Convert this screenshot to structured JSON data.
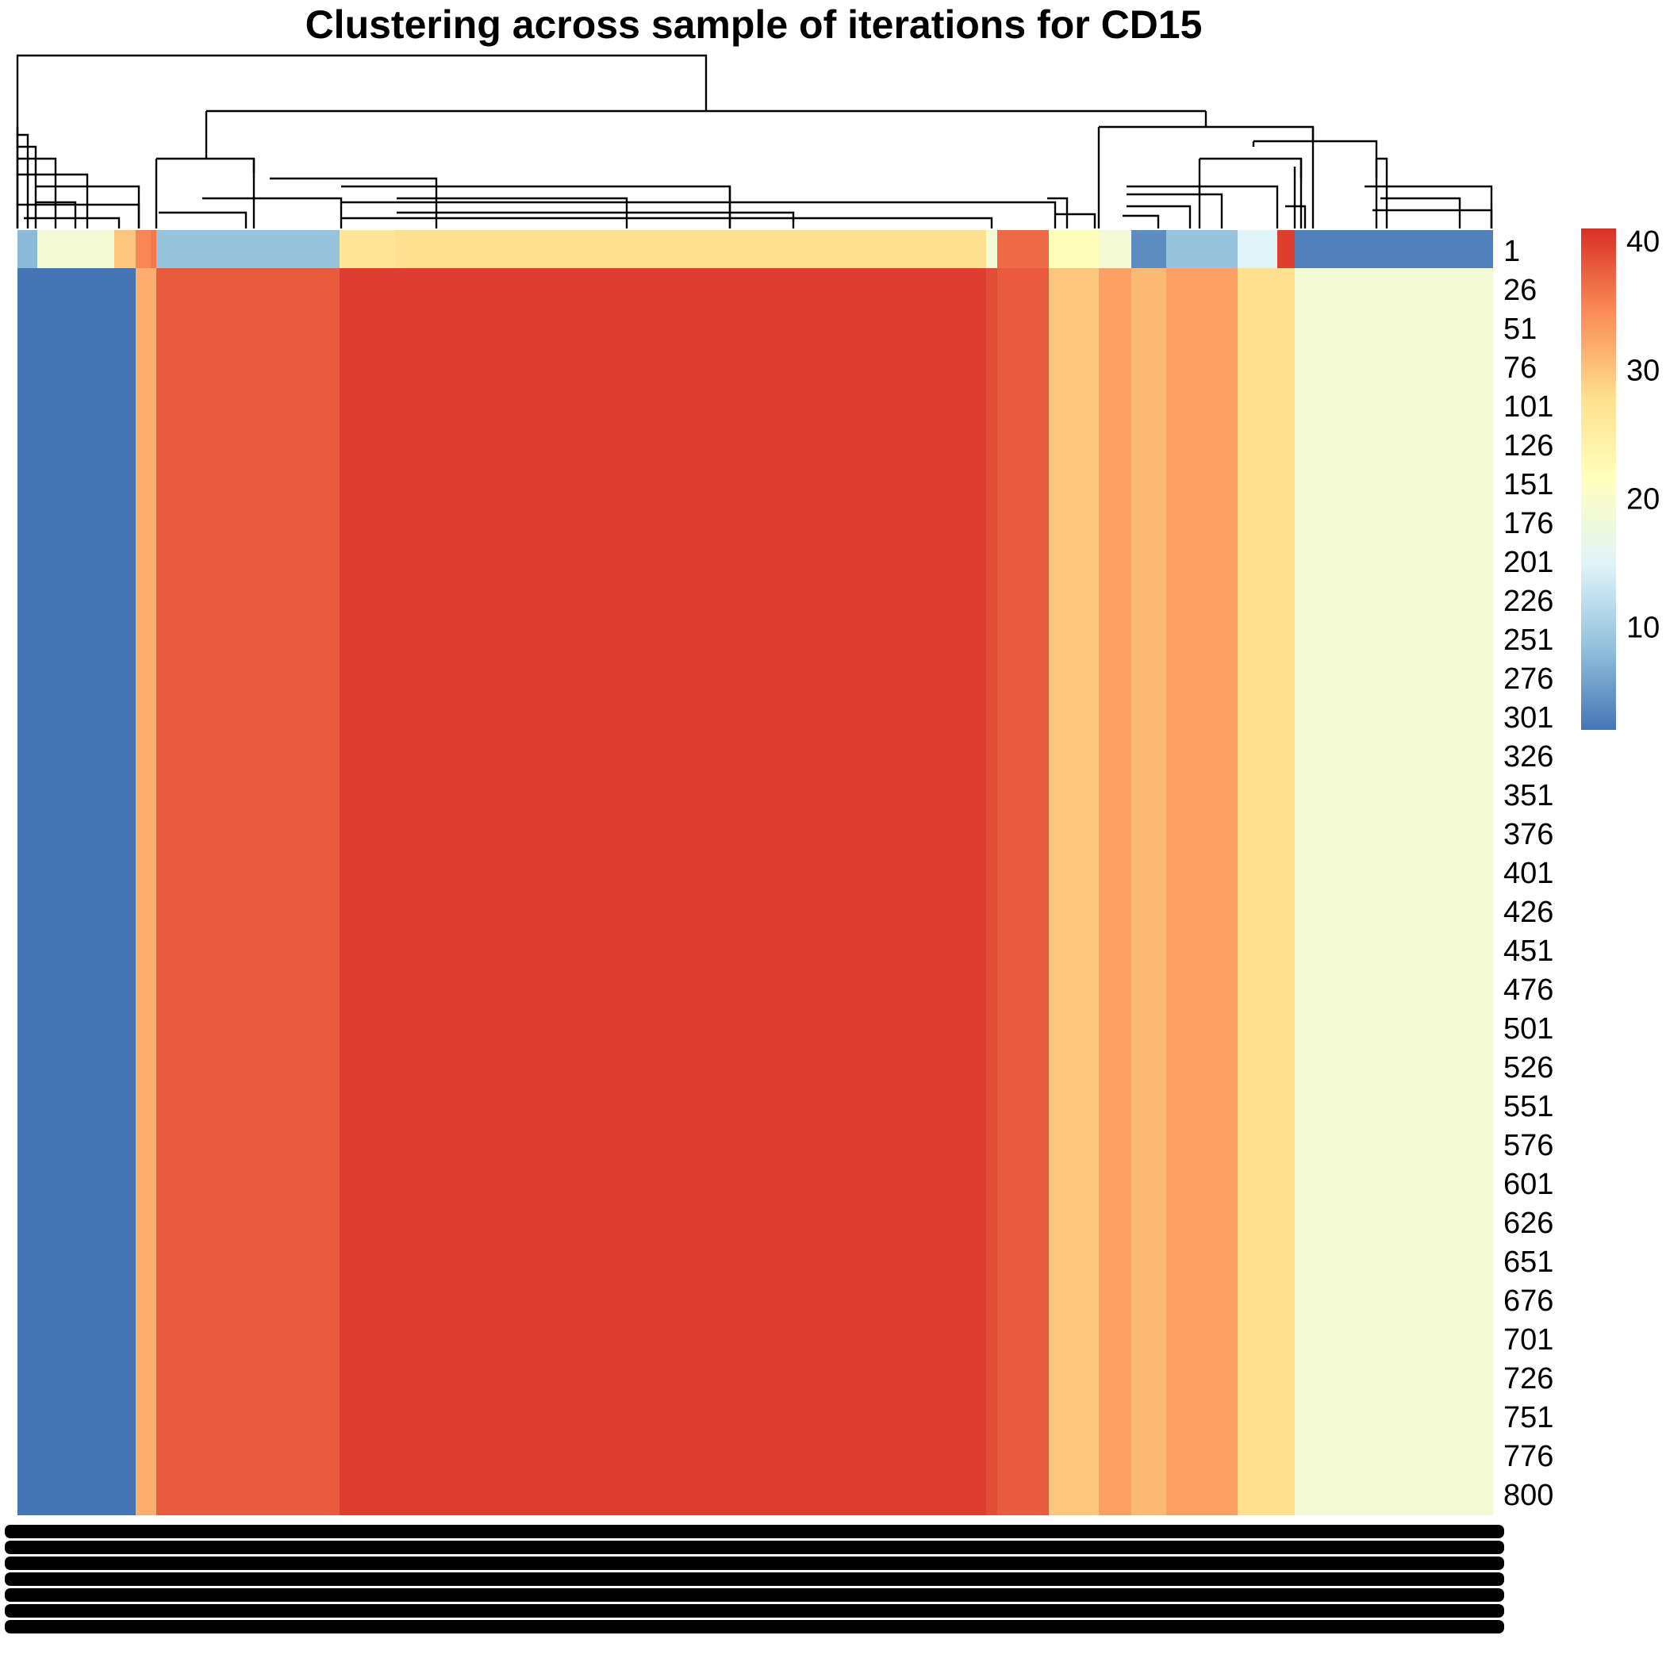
{
  "chart_data": {
    "type": "heatmap",
    "title": "Clustering across sample of iterations for CD15",
    "row_labels": [
      "1",
      "26",
      "51",
      "76",
      "101",
      "126",
      "151",
      "176",
      "201",
      "226",
      "251",
      "276",
      "301",
      "326",
      "351",
      "376",
      "401",
      "426",
      "451",
      "476",
      "501",
      "526",
      "551",
      "576",
      "601",
      "626",
      "651",
      "676",
      "701",
      "726",
      "751",
      "776",
      "800"
    ],
    "columns": [
      {
        "first_row": 8,
        "other_rows": 2
      },
      {
        "first_row": 22,
        "other_rows": 2
      },
      {
        "first_row": 19,
        "other_rows": 2
      },
      {
        "first_row": 30,
        "other_rows": 2
      },
      {
        "first_row": 35,
        "other_rows": 32
      },
      {
        "first_row": 36,
        "other_rows": 32
      },
      {
        "first_row": 9,
        "other_rows": 38
      },
      {
        "first_row": 27,
        "other_rows": 40
      },
      {
        "first_row": 28,
        "other_rows": 40
      },
      {
        "first_row": 19,
        "other_rows": 39
      },
      {
        "first_row": 37,
        "other_rows": 38
      },
      {
        "first_row": 22,
        "other_rows": 30
      },
      {
        "first_row": 19,
        "other_rows": 33
      },
      {
        "first_row": 4,
        "other_rows": 31
      },
      {
        "first_row": 9,
        "other_rows": 33
      },
      {
        "first_row": 15,
        "other_rows": 28
      },
      {
        "first_row": 40,
        "other_rows": 28
      },
      {
        "first_row": 3,
        "other_rows": 19
      },
      {
        "first_row": 22,
        "other_rows": 22
      }
    ],
    "colorbar": {
      "ticks": [
        10,
        20,
        30,
        40
      ],
      "range": [
        2,
        41
      ],
      "colors": [
        "#4575b4",
        "#91bfdb",
        "#e0f3f8",
        "#ffffbf",
        "#fee090",
        "#fc8d59",
        "#d73027"
      ]
    }
  }
}
